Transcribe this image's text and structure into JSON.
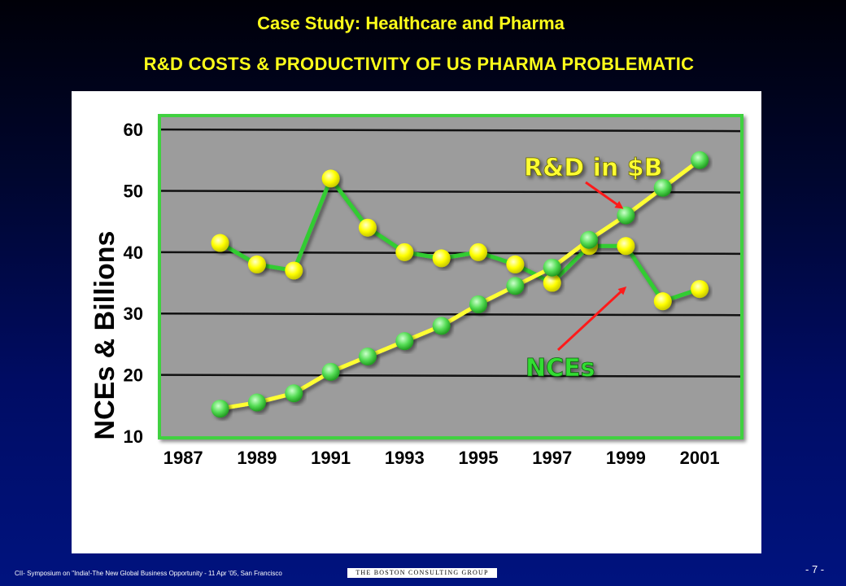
{
  "header": {
    "title": "Case Study: Healthcare and Pharma",
    "subtitle": "R&D COSTS & PRODUCTIVITY OF US PHARMA PROBLEMATIC"
  },
  "footer": {
    "text": "CII- Symposium on \"India!-The New Global Business Opportunity - 11 Apr '05, San Francisco",
    "logo": "The Boston Consulting Group",
    "page": "- 7 -"
  },
  "colors": {
    "plot_bg": "#9c9c9c",
    "plot_border": "#3fd13f",
    "rd_line": "#ffff33",
    "nce_line": "#33cc33",
    "annotation_rd": "#ffff33",
    "annotation_nce": "#33dd33",
    "arrow": "#ff1a1a",
    "tick_text": "#000000"
  },
  "chart_data": {
    "type": "line",
    "ylabel": "NCEs & Billions",
    "ylim": [
      10,
      62
    ],
    "xlim": [
      1986.4,
      2002.1
    ],
    "yticks": [
      10,
      20,
      30,
      40,
      50,
      60
    ],
    "xticks": [
      1987,
      1989,
      1991,
      1993,
      1995,
      1997,
      1999,
      2001
    ],
    "grid": true,
    "series": [
      {
        "name": "R&D in $B",
        "color": "#ffff33",
        "marker": "#33cc33",
        "x": [
          1988,
          1989,
          1990,
          1991,
          1992,
          1993,
          1994,
          1995,
          1996,
          1997,
          1998,
          1999,
          2000,
          2001
        ],
        "values": [
          14.5,
          15.5,
          17,
          20.5,
          23,
          25.5,
          28,
          31.5,
          34.5,
          37.5,
          42,
          46,
          50.5,
          55
        ]
      },
      {
        "name": "NCEs",
        "color": "#33cc33",
        "marker": "#ffff00",
        "x": [
          1988,
          1989,
          1990,
          1991,
          1992,
          1993,
          1994,
          1995,
          1996,
          1997,
          1998,
          1999,
          2000,
          2001
        ],
        "values": [
          41.5,
          38,
          37,
          52,
          44,
          40,
          39,
          40,
          38,
          35,
          41,
          41,
          32,
          34
        ]
      }
    ],
    "annotations": [
      {
        "text": "R&D in $B",
        "series": 0
      },
      {
        "text": "NCEs",
        "series": 1
      }
    ]
  }
}
